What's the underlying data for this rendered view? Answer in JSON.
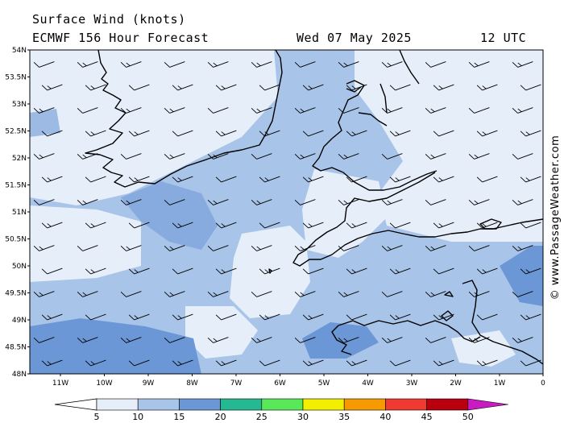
{
  "header": {
    "title": "Surface Wind (knots)",
    "model": "ECMWF 156 Hour Forecast",
    "date": "Wed 07 May 2025",
    "time": "12 UTC"
  },
  "credit": "© www.PassageWeather.com",
  "map": {
    "lat_labels": [
      "54N",
      "53.5N",
      "53N",
      "52.5N",
      "52N",
      "51.5N",
      "51N",
      "50.5N",
      "50N",
      "49.5N",
      "49N",
      "48.5N",
      "48N"
    ],
    "lon_labels": [
      "11W",
      "10W",
      "9W",
      "8W",
      "7W",
      "6W",
      "5W",
      "4W",
      "3W",
      "2W",
      "1W",
      "0"
    ],
    "regions": [
      "Ireland",
      "Wales",
      "Cornwall",
      "Devon",
      "Dorset",
      "Isle of Wight",
      "Cotentin Peninsula",
      "Brittany",
      "Isles of Scilly",
      "Channel Islands"
    ],
    "wind_field": "mostly 10-15 knots from the west-southwest, 15-20 knots in the Western Approaches and Bay of Biscay, lighter (5-10 knots) over land and south of Ireland"
  },
  "colorbar": {
    "ticks": [
      "5",
      "10",
      "15",
      "20",
      "25",
      "30",
      "35",
      "40",
      "45",
      "50"
    ],
    "colors": [
      "#e6eefa",
      "#a8c4e8",
      "#6b97d6",
      "#26b890",
      "#59e85a",
      "#f2ef00",
      "#f59a00",
      "#ef3a32",
      "#b8000e",
      "#c81bc2"
    ]
  }
}
